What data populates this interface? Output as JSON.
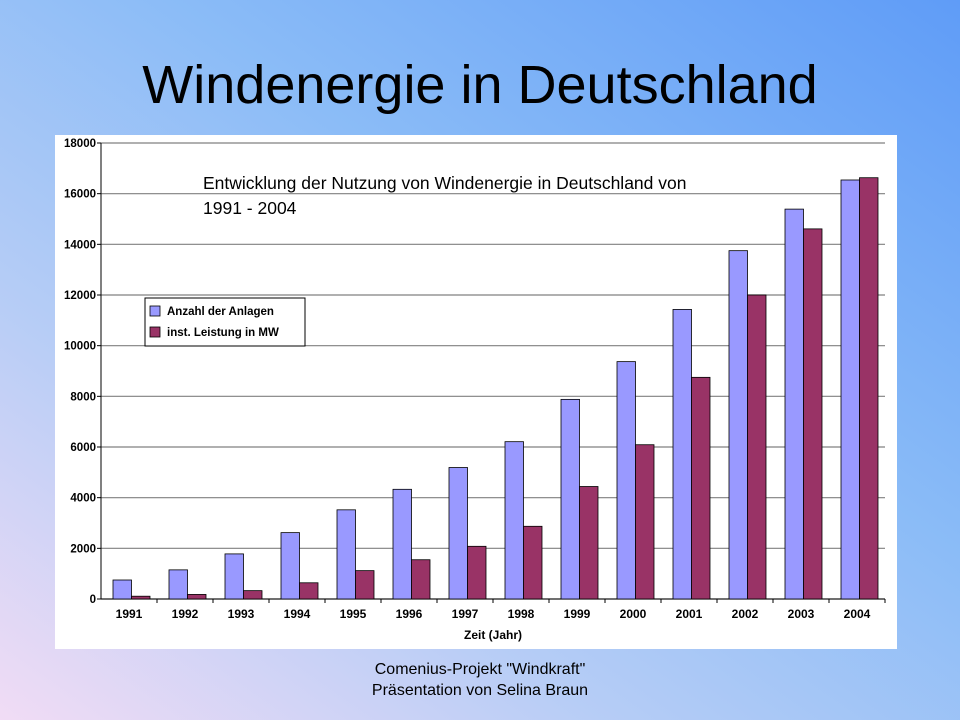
{
  "slide": {
    "title": "Windenergie in Deutschland",
    "footer_line1": "Comenius-Projekt \"Windkraft\"",
    "footer_line2": "Präsentation von Selina Braun"
  },
  "colors": {
    "series1": "#9999ff",
    "series2": "#993366",
    "grid": "#808080"
  },
  "chart_data": {
    "type": "bar",
    "caption": "Entwicklung der Nutzung von Windenergie in Deutschland von 1991 - 2004",
    "xlabel": "Zeit (Jahr)",
    "ylabel": "",
    "categories": [
      "1991",
      "1992",
      "1993",
      "1994",
      "1995",
      "1996",
      "1997",
      "1998",
      "1999",
      "2000",
      "2001",
      "2002",
      "2003",
      "2004"
    ],
    "series": [
      {
        "name": "Anzahl der Anlagen",
        "values": [
          750,
          1150,
          1780,
          2620,
          3520,
          4330,
          5190,
          6210,
          7880,
          9370,
          11430,
          13750,
          15390,
          16540
        ]
      },
      {
        "name": "inst. Leistung in MW",
        "values": [
          110,
          180,
          330,
          640,
          1120,
          1550,
          2080,
          2870,
          4440,
          6090,
          8750,
          12000,
          14610,
          16630
        ]
      }
    ],
    "ylim": [
      0,
      18000
    ],
    "yticks": [
      0,
      2000,
      4000,
      6000,
      8000,
      10000,
      12000,
      14000,
      16000,
      18000
    ],
    "grid": true,
    "legend_position": "upper-left"
  }
}
